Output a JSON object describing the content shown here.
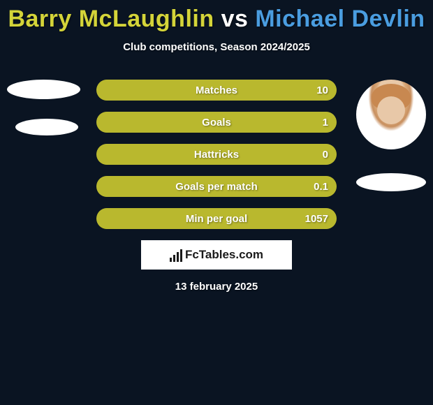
{
  "background_color": "#0a1422",
  "title": {
    "player1": "Barry McLaughlin",
    "vs": " vs ",
    "player2": "Michael Devlin",
    "player1_color": "#d4d439",
    "vs_color": "#ffffff",
    "player2_color": "#4a9de0",
    "fontsize": 34
  },
  "subtitle": "Club competitions, Season 2024/2025",
  "colors": {
    "bar_fill": "#b9b82e",
    "bar_bg": "#8a8a24",
    "text": "#ffffff"
  },
  "bars": [
    {
      "label": "Matches",
      "fill_pct": 100,
      "value_right": "10"
    },
    {
      "label": "Goals",
      "fill_pct": 100,
      "value_right": "1"
    },
    {
      "label": "Hattricks",
      "fill_pct": 100,
      "value_right": "0"
    },
    {
      "label": "Goals per match",
      "fill_pct": 100,
      "value_right": "0.1"
    },
    {
      "label": "Min per goal",
      "fill_pct": 100,
      "value_right": "1057"
    }
  ],
  "branding": "FcTables.com",
  "date": "13 february 2025"
}
